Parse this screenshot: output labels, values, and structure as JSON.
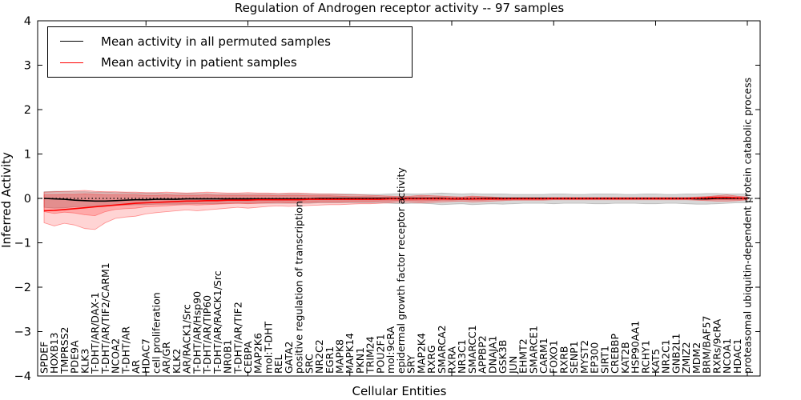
{
  "figure": {
    "title": "Regulation of Androgen receptor activity -- 97 samples",
    "xlabel": "Cellular Entities",
    "ylabel": "Inferred Activity",
    "legend": [
      {
        "label": "Mean activity in all permuted samples",
        "color": "#000000"
      },
      {
        "label": "Mean activity in patient samples",
        "color": "#ff0000"
      }
    ]
  },
  "chart_data": {
    "type": "line",
    "title": "Regulation of Androgen receptor activity -- 97 samples",
    "xlabel": "Cellular Entities",
    "ylabel": "Inferred Activity",
    "ylim": [
      -4,
      4
    ],
    "y_ticks": [
      "4",
      "3",
      "2",
      "1",
      "0",
      "−1",
      "−2",
      "−3",
      "−4"
    ],
    "grid": false,
    "legend_position": "upper left",
    "zero_line": true,
    "x_label_rotation": 90,
    "categories": [
      "SPDEF",
      "HOXB13",
      "TMPRSS2",
      "PDE9A",
      "KLK3",
      "T-DHT/AR/DAX-1",
      "T-DHT/AR/TIF2/CARM1",
      "NCOA2",
      "T-DHT/AR",
      "AR",
      "HDAC7",
      "cell proliferation",
      "AR/GR",
      "KLK2",
      "AR/RACK1/Src",
      "T-DHT/AR/Hsp90",
      "T-DHT/AR/TIP60",
      "T-DHT/AR/RACK1/Src",
      "NR0B1",
      "T-DHT/AR/TIF2",
      "CEBPA",
      "MAP2K6",
      "mol:T-DHT",
      "REL",
      "GATA2",
      "positive regulation of transcription",
      "SRC",
      "NR2C2",
      "EGR1",
      "MAPK8",
      "MAPK14",
      "PKN1",
      "TRIM24",
      "POU2F1",
      "mol:9cRA",
      "epidermal growth factor receptor activity",
      "SRY",
      "MAP2K4",
      "RXRG",
      "SMARCA2",
      "RXRA",
      "NR3C1",
      "SMARCC1",
      "APPBP2",
      "DNAJA1",
      "GSK3B",
      "JUN",
      "EHMT2",
      "SMARCE1",
      "CARM1",
      "FOXO1",
      "RXRB",
      "SENP1",
      "MYST2",
      "EP300",
      "SIRT1",
      "CREBBP",
      "KAT2B",
      "HSP90AA1",
      "RCHY1",
      "KAT5",
      "NR2C1",
      "GNB2L1",
      "ZMIZ2",
      "MDM2",
      "BRM/BAF57",
      "RXRs/9cRA",
      "NCOA1",
      "HDAC1",
      "proteasomal ubiquitin-dependent protein catabolic process"
    ],
    "series": [
      {
        "name": "Mean activity in all permuted samples",
        "color": "#000000",
        "values": [
          0.0,
          -0.01,
          -0.02,
          -0.04,
          -0.05,
          -0.06,
          -0.06,
          -0.05,
          -0.04,
          -0.03,
          -0.03,
          -0.02,
          -0.02,
          -0.02,
          -0.01,
          -0.01,
          -0.01,
          -0.01,
          -0.01,
          -0.01,
          -0.01,
          -0.01,
          -0.01,
          -0.01,
          -0.01,
          -0.01,
          -0.01,
          0.0,
          0.0,
          0.0,
          0.0,
          0.0,
          0.0,
          0.0,
          0.0,
          0.0,
          0.0,
          0.0,
          0.0,
          0.0,
          -0.01,
          -0.01,
          -0.01,
          0.0,
          0.0,
          0.0,
          0.0,
          0.0,
          0.0,
          0.0,
          0.0,
          0.0,
          0.0,
          0.0,
          0.0,
          0.0,
          0.0,
          0.0,
          0.0,
          0.0,
          0.0,
          0.0,
          0.0,
          0.0,
          -0.01,
          -0.01,
          0.0,
          0.0,
          0.0,
          0.0
        ]
      },
      {
        "name": "Mean activity in patient samples",
        "color": "#ff0000",
        "values": [
          -0.28,
          -0.27,
          -0.25,
          -0.23,
          -0.21,
          -0.19,
          -0.17,
          -0.15,
          -0.13,
          -0.11,
          -0.1,
          -0.09,
          -0.08,
          -0.07,
          -0.06,
          -0.06,
          -0.05,
          -0.05,
          -0.04,
          -0.04,
          -0.04,
          -0.03,
          -0.03,
          -0.03,
          -0.03,
          -0.03,
          -0.02,
          -0.02,
          -0.02,
          -0.02,
          -0.02,
          -0.02,
          -0.02,
          -0.02,
          -0.01,
          -0.01,
          -0.01,
          -0.01,
          -0.01,
          -0.01,
          -0.01,
          -0.01,
          -0.01,
          -0.01,
          -0.01,
          -0.01,
          -0.01,
          -0.01,
          -0.01,
          -0.01,
          0.0,
          0.0,
          0.0,
          0.0,
          0.0,
          0.0,
          0.0,
          0.0,
          0.0,
          0.0,
          0.0,
          0.0,
          0.0,
          0.0,
          0.0,
          0.01,
          0.02,
          0.02,
          0.01,
          0.0
        ]
      }
    ],
    "bands": [
      {
        "name": "permuted-samples-range",
        "color": "rgba(130,130,130,0.32)",
        "edge_color": "rgba(130,130,130,0.45)",
        "upper": [
          0.15,
          0.16,
          0.16,
          0.15,
          0.15,
          0.14,
          0.14,
          0.13,
          0.13,
          0.12,
          0.12,
          0.12,
          0.11,
          0.11,
          0.11,
          0.11,
          0.11,
          0.1,
          0.1,
          0.1,
          0.1,
          0.1,
          0.1,
          0.1,
          0.1,
          0.1,
          0.1,
          0.1,
          0.1,
          0.1,
          0.1,
          0.09,
          0.09,
          0.09,
          0.1,
          0.11,
          0.1,
          0.1,
          0.11,
          0.12,
          0.11,
          0.1,
          0.11,
          0.1,
          0.1,
          0.1,
          0.09,
          0.09,
          0.09,
          0.09,
          0.1,
          0.1,
          0.09,
          0.09,
          0.1,
          0.1,
          0.1,
          0.09,
          0.09,
          0.1,
          0.1,
          0.09,
          0.09,
          0.1,
          0.1,
          0.11,
          0.11,
          0.1,
          0.1,
          0.1
        ],
        "lower": [
          -0.2,
          -0.22,
          -0.21,
          -0.19,
          -0.18,
          -0.17,
          -0.16,
          -0.15,
          -0.15,
          -0.14,
          -0.14,
          -0.13,
          -0.13,
          -0.13,
          -0.12,
          -0.12,
          -0.12,
          -0.12,
          -0.11,
          -0.11,
          -0.11,
          -0.11,
          -0.11,
          -0.11,
          -0.11,
          -0.11,
          -0.11,
          -0.1,
          -0.1,
          -0.1,
          -0.1,
          -0.1,
          -0.1,
          -0.1,
          -0.11,
          -0.12,
          -0.11,
          -0.11,
          -0.12,
          -0.14,
          -0.13,
          -0.12,
          -0.14,
          -0.13,
          -0.12,
          -0.13,
          -0.12,
          -0.11,
          -0.11,
          -0.11,
          -0.12,
          -0.11,
          -0.11,
          -0.11,
          -0.12,
          -0.12,
          -0.11,
          -0.11,
          -0.11,
          -0.12,
          -0.12,
          -0.11,
          -0.11,
          -0.12,
          -0.13,
          -0.13,
          -0.12,
          -0.11,
          -0.1,
          -0.1
        ]
      },
      {
        "name": "patient-samples-range-outer",
        "color": "rgba(255,0,0,0.17)",
        "edge_color": "rgba(255,0,0,0.40)",
        "upper": [
          0.14,
          0.15,
          0.16,
          0.17,
          0.18,
          0.16,
          0.15,
          0.15,
          0.14,
          0.14,
          0.13,
          0.13,
          0.14,
          0.13,
          0.12,
          0.13,
          0.14,
          0.13,
          0.12,
          0.12,
          0.13,
          0.12,
          0.12,
          0.11,
          0.12,
          0.12,
          0.11,
          0.1,
          0.1,
          0.09,
          0.08,
          0.08,
          0.07,
          0.06,
          0.05,
          0.04,
          0.05,
          0.07,
          0.06,
          0.05,
          0.04,
          0.03,
          0.05,
          0.04,
          0.03,
          0.02,
          0.02,
          0.02,
          0.02,
          0.02,
          0.02,
          0.02,
          0.02,
          0.02,
          0.02,
          0.02,
          0.02,
          0.02,
          0.02,
          0.02,
          0.02,
          0.02,
          0.02,
          0.02,
          0.03,
          0.04,
          0.06,
          0.08,
          0.05,
          0.03
        ],
        "lower": [
          -0.55,
          -0.62,
          -0.56,
          -0.6,
          -0.68,
          -0.7,
          -0.55,
          -0.45,
          -0.42,
          -0.4,
          -0.35,
          -0.32,
          -0.3,
          -0.28,
          -0.26,
          -0.28,
          -0.26,
          -0.24,
          -0.22,
          -0.2,
          -0.22,
          -0.2,
          -0.18,
          -0.17,
          -0.18,
          -0.17,
          -0.16,
          -0.15,
          -0.14,
          -0.14,
          -0.13,
          -0.12,
          -0.12,
          -0.11,
          -0.1,
          -0.08,
          -0.09,
          -0.1,
          -0.09,
          -0.08,
          -0.07,
          -0.06,
          -0.08,
          -0.07,
          -0.06,
          -0.05,
          -0.04,
          -0.04,
          -0.04,
          -0.04,
          -0.03,
          -0.03,
          -0.03,
          -0.03,
          -0.03,
          -0.03,
          -0.03,
          -0.03,
          -0.03,
          -0.03,
          -0.03,
          -0.03,
          -0.03,
          -0.03,
          -0.04,
          -0.05,
          -0.06,
          -0.06,
          -0.05,
          -0.03
        ]
      },
      {
        "name": "patient-samples-range-inner",
        "color": "rgba(255,0,0,0.20)",
        "edge_color": "rgba(255,0,0,0.35)",
        "upper": [
          0.08,
          0.08,
          0.09,
          0.09,
          0.1,
          0.09,
          0.08,
          0.08,
          0.08,
          0.08,
          0.07,
          0.07,
          0.08,
          0.07,
          0.07,
          0.07,
          0.08,
          0.07,
          0.07,
          0.07,
          0.07,
          0.07,
          0.07,
          0.06,
          0.07,
          0.07,
          0.06,
          0.06,
          0.06,
          0.05,
          0.04,
          0.04,
          0.04,
          0.03,
          0.03,
          0.02,
          0.03,
          0.04,
          0.03,
          0.03,
          0.02,
          0.02,
          0.03,
          0.02,
          0.02,
          0.01,
          0.01,
          0.01,
          0.01,
          0.01,
          0.01,
          0.01,
          0.01,
          0.01,
          0.01,
          0.01,
          0.01,
          0.01,
          0.01,
          0.01,
          0.01,
          0.01,
          0.01,
          0.01,
          0.02,
          0.03,
          0.04,
          0.04,
          0.03,
          0.02
        ],
        "lower": [
          -0.3,
          -0.34,
          -0.31,
          -0.33,
          -0.37,
          -0.39,
          -0.3,
          -0.25,
          -0.23,
          -0.22,
          -0.19,
          -0.18,
          -0.17,
          -0.15,
          -0.14,
          -0.15,
          -0.14,
          -0.13,
          -0.12,
          -0.11,
          -0.12,
          -0.11,
          -0.1,
          -0.09,
          -0.1,
          -0.09,
          -0.09,
          -0.08,
          -0.08,
          -0.08,
          -0.07,
          -0.07,
          -0.07,
          -0.06,
          -0.06,
          -0.04,
          -0.05,
          -0.06,
          -0.05,
          -0.04,
          -0.04,
          -0.03,
          -0.04,
          -0.04,
          -0.03,
          -0.03,
          -0.02,
          -0.02,
          -0.02,
          -0.02,
          -0.02,
          -0.02,
          -0.02,
          -0.02,
          -0.02,
          -0.02,
          -0.02,
          -0.02,
          -0.02,
          -0.02,
          -0.02,
          -0.02,
          -0.02,
          -0.02,
          -0.02,
          -0.03,
          -0.03,
          -0.03,
          -0.03,
          -0.02
        ]
      }
    ]
  }
}
